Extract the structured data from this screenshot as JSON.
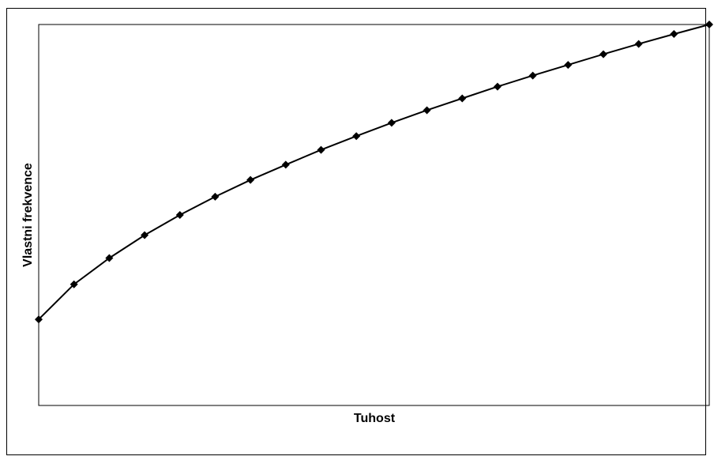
{
  "chart_data": {
    "type": "line",
    "title": "",
    "xlabel": "Tuhost",
    "ylabel": "Vlastni frekvence",
    "x": [
      0,
      1,
      2,
      3,
      4,
      5,
      6,
      7,
      8,
      9,
      10,
      11,
      12,
      13,
      14,
      15,
      16,
      17,
      18,
      19
    ],
    "series": [
      {
        "values": [
          0.226,
          0.318,
          0.387,
          0.447,
          0.5,
          0.548,
          0.592,
          0.632,
          0.671,
          0.707,
          0.742,
          0.775,
          0.806,
          0.837,
          0.866,
          0.894,
          0.922,
          0.949,
          0.975,
          1.0
        ]
      }
    ],
    "ylim": [
      0,
      1
    ],
    "grid": false,
    "legend": false,
    "show_ticks": false,
    "colors": {
      "line": "#000000",
      "marker": "#000000",
      "plot_border": "#000000",
      "background": "#ffffff"
    },
    "marker": "diamond"
  }
}
